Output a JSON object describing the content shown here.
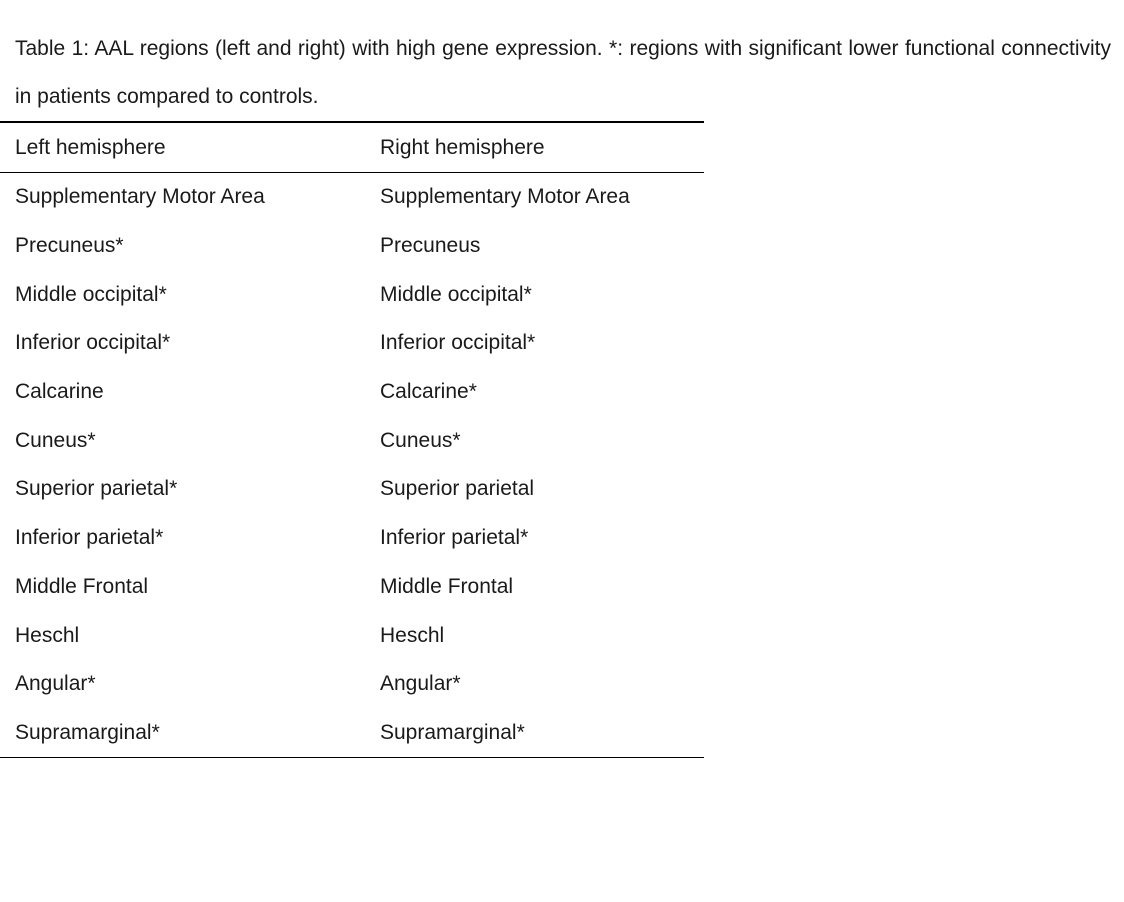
{
  "caption": "Table 1: AAL regions  (left and right) with high gene expression. *: regions with significant lower functional connectivity in patients compared to controls.",
  "table": {
    "headers": [
      "Left hemisphere",
      "Right hemisphere"
    ],
    "rows": [
      [
        "Supplementary Motor Area",
        "Supplementary Motor Area"
      ],
      [
        "Precuneus*",
        "Precuneus"
      ],
      [
        "Middle occipital*",
        "Middle occipital*"
      ],
      [
        "Inferior occipital*",
        "Inferior occipital*"
      ],
      [
        "Calcarine",
        "Calcarine*"
      ],
      [
        "Cuneus*",
        "Cuneus*"
      ],
      [
        "Superior parietal*",
        "Superior parietal"
      ],
      [
        "Inferior parietal*",
        "Inferior parietal*"
      ],
      [
        "Middle Frontal",
        "Middle Frontal"
      ],
      [
        "Heschl",
        "Heschl"
      ],
      [
        "Angular*",
        "Angular*"
      ],
      [
        "Supramarginal*",
        "Supramarginal*"
      ]
    ]
  }
}
